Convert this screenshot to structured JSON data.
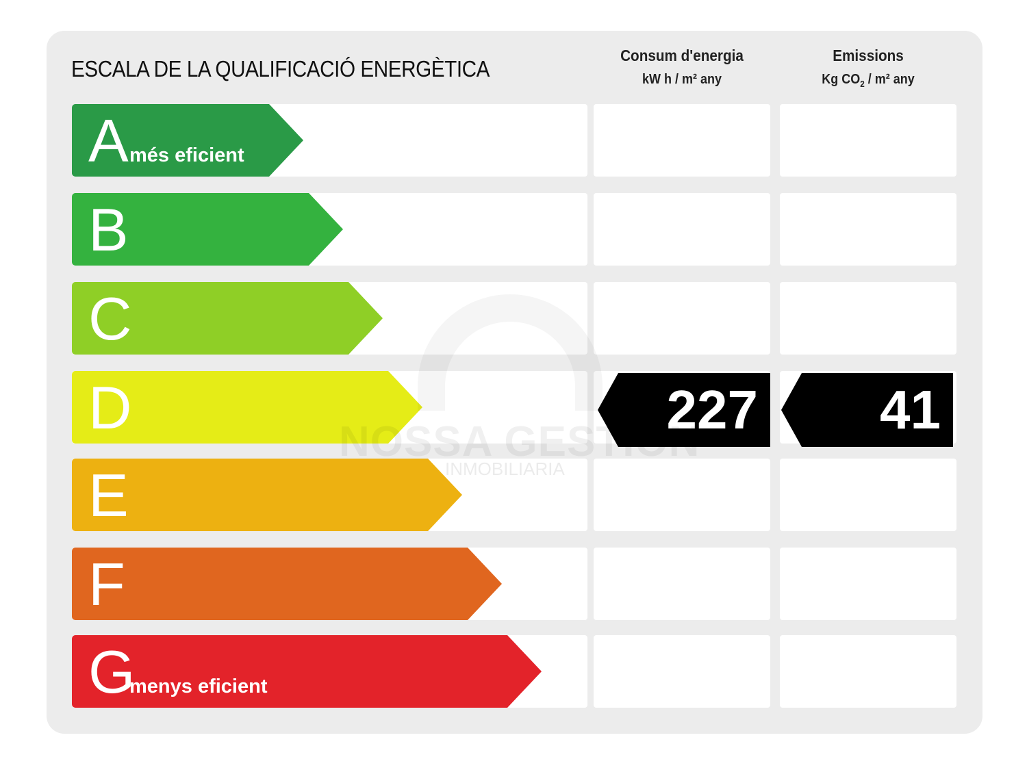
{
  "title": "ESCALA DE LA QUALIFICACIÓ ENERGÈTICA",
  "columns": {
    "energy": {
      "label": "Consum d'energia",
      "unit": "kW h / m² any"
    },
    "emissions": {
      "label": "Emissions",
      "unit_prefix": "Kg CO",
      "unit_sub": "2",
      "unit_suffix": " / m² any"
    }
  },
  "classes": [
    {
      "letter": "A",
      "sublabel": "més eficient",
      "color": "#2a9a47"
    },
    {
      "letter": "B",
      "sublabel": "",
      "color": "#34b23f"
    },
    {
      "letter": "C",
      "sublabel": "",
      "color": "#8fcf26"
    },
    {
      "letter": "D",
      "sublabel": "",
      "color": "#e5ec17"
    },
    {
      "letter": "E",
      "sublabel": "",
      "color": "#edb111"
    },
    {
      "letter": "F",
      "sublabel": "",
      "color": "#e0661f"
    },
    {
      "letter": "G",
      "sublabel": "menys eficient",
      "color": "#e3232a"
    }
  ],
  "rating": {
    "class": "D",
    "energy_value": "227",
    "emissions_value": "41"
  },
  "watermark": {
    "line1": "NOSSA GESTIÓN",
    "line2": "INMOBILIARIA"
  }
}
